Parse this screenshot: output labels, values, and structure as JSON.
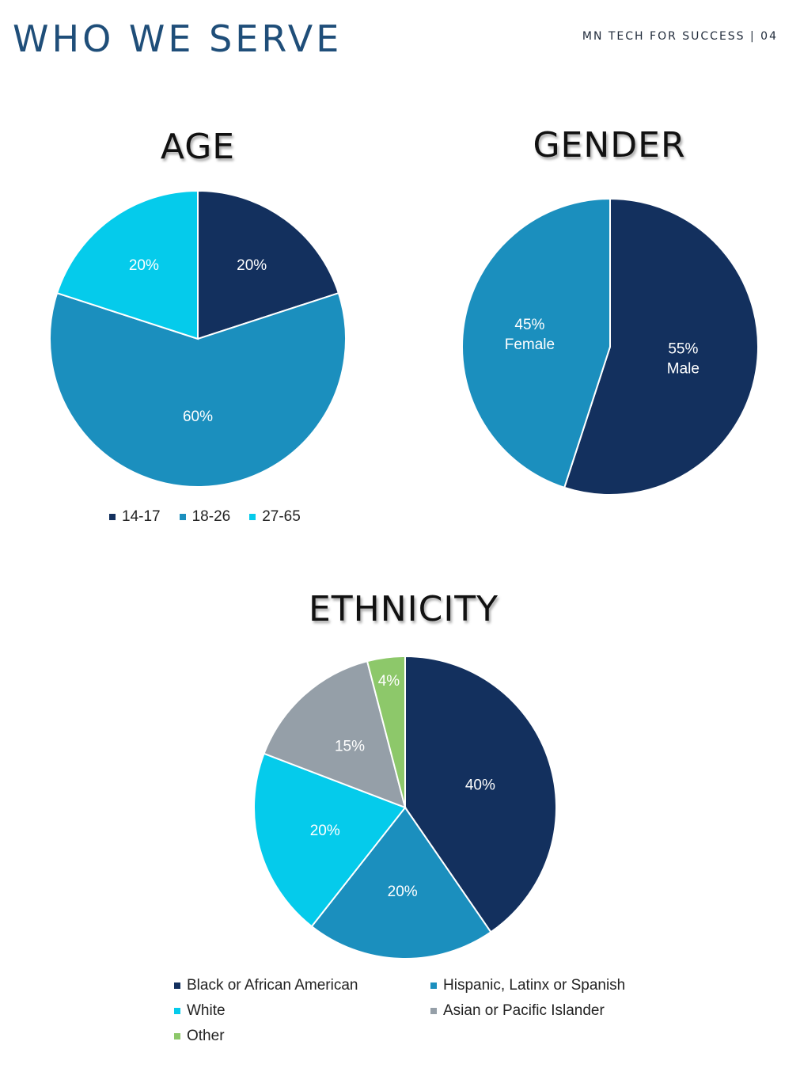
{
  "header": {
    "title": "WHO WE SERVE",
    "org_page": "MN TECH FOR SUCCESS | 04"
  },
  "chart_data": [
    {
      "type": "pie",
      "title": "AGE",
      "legend_placement": "bottom",
      "slices": [
        {
          "label": "14-17",
          "value": 20,
          "value_label": "20%",
          "color": "#13305e"
        },
        {
          "label": "18-26",
          "value": 60,
          "value_label": "60%",
          "color": "#1b8fbe"
        },
        {
          "label": "27-65",
          "value": 20,
          "value_label": "20%",
          "color": "#05cbeb"
        }
      ]
    },
    {
      "type": "pie",
      "title": "GENDER",
      "legend_placement": "none",
      "slices": [
        {
          "label": "Male",
          "value": 55,
          "value_label": "55%",
          "color": "#13305e"
        },
        {
          "label": "Female",
          "value": 45,
          "value_label": "45%",
          "color": "#1b8fbe"
        }
      ]
    },
    {
      "type": "pie",
      "title": "ETHNICITY",
      "legend_placement": "bottom",
      "slices": [
        {
          "label": "Black or African American",
          "value": 40,
          "value_label": "40%",
          "color": "#13305e"
        },
        {
          "label": "Hispanic, Latinx or Spanish",
          "value": 20,
          "value_label": "20%",
          "color": "#1b8fbe"
        },
        {
          "label": "White",
          "value": 20,
          "value_label": "20%",
          "color": "#05cbeb"
        },
        {
          "label": "Asian or Pacific Islander",
          "value": 15,
          "value_label": "15%",
          "color": "#959fa8"
        },
        {
          "label": "Other",
          "value": 4,
          "value_label": "4%",
          "color": "#8dc86a"
        }
      ]
    }
  ]
}
